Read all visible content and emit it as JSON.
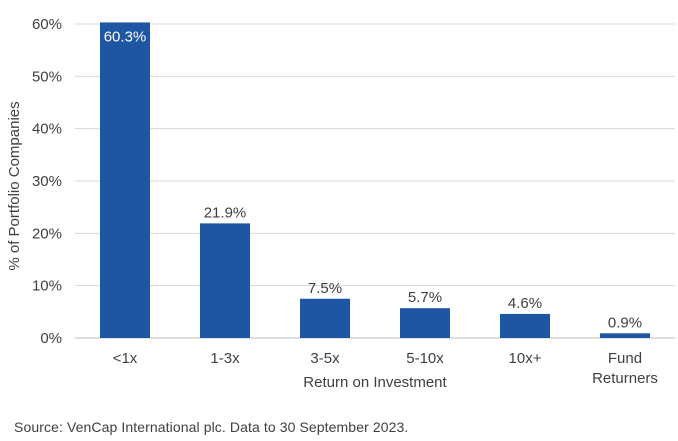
{
  "chart_data": {
    "type": "bar",
    "categories": [
      [
        "<1x"
      ],
      [
        "1-3x"
      ],
      [
        "3-5x"
      ],
      [
        "5-10x"
      ],
      [
        "10x+"
      ],
      [
        "Fund",
        "Returners"
      ]
    ],
    "values": [
      60.3,
      21.9,
      7.5,
      5.7,
      4.6,
      0.9
    ],
    "data_labels": [
      "60.3%",
      "21.9%",
      "7.5%",
      "5.7%",
      "4.6%",
      "0.9%"
    ],
    "xlabel": "Return on Investment",
    "ylabel": "% of Portfolio Companies",
    "ylim": [
      0,
      60
    ],
    "yticks": [
      0,
      10,
      20,
      30,
      40,
      50,
      60
    ],
    "ytick_labels": [
      "0%",
      "10%",
      "20%",
      "30%",
      "40%",
      "50%",
      "60%"
    ],
    "grid": true,
    "bar_color": "#1f56a3",
    "inside_label_color": "#ffffff",
    "label_color": "#404040",
    "grid_color": "#d9d9d9"
  },
  "source_note": "Source: VenCap International plc.  Data to 30 September 2023."
}
